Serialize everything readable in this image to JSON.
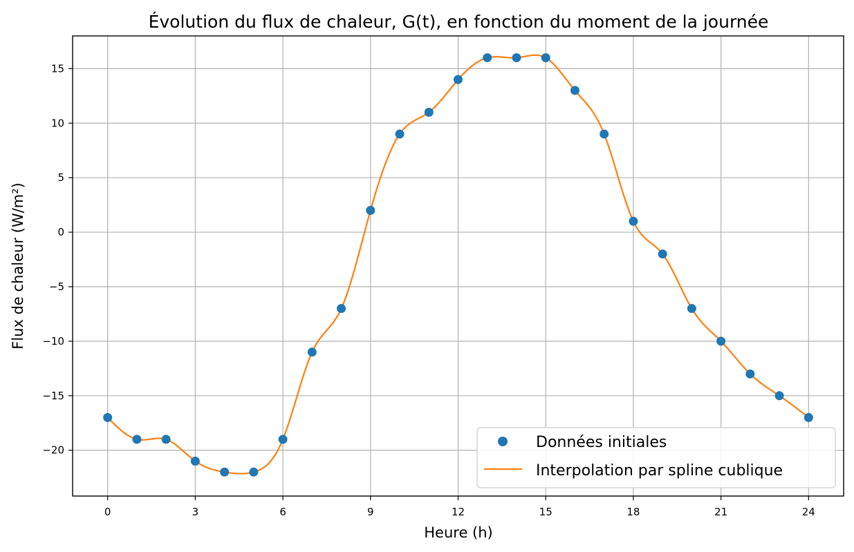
{
  "chart_data": {
    "type": "line",
    "title": "Évolution du flux de chaleur, G(t), en fonction du moment de la journée",
    "xlabel": "Heure (h)",
    "ylabel": "Flux de chaleur (W/m²)",
    "xlim": [
      -1.2,
      25.2
    ],
    "ylim": [
      -24.2,
      18.0
    ],
    "xticks": [
      0,
      3,
      6,
      9,
      12,
      15,
      18,
      21,
      24
    ],
    "xtick_labels": [
      "0",
      "3",
      "6",
      "9",
      "12",
      "15",
      "18",
      "21",
      "24"
    ],
    "yticks": [
      -20,
      -15,
      -10,
      -5,
      0,
      5,
      10,
      15
    ],
    "ytick_labels": [
      "−20",
      "−15",
      "−10",
      "−5",
      "0",
      "5",
      "10",
      "15"
    ],
    "grid": true,
    "legend_position": "bottom-right",
    "series": [
      {
        "name": "Données initiales",
        "kind": "scatter",
        "color": "#1f77b4",
        "x": [
          0,
          1,
          2,
          3,
          4,
          5,
          6,
          7,
          8,
          9,
          10,
          11,
          12,
          13,
          14,
          15,
          16,
          17,
          18,
          19,
          20,
          21,
          22,
          23,
          24
        ],
        "y": [
          -17,
          -19,
          -19,
          -21,
          -22,
          -22,
          -19,
          -11,
          -7,
          2,
          9,
          11,
          14,
          16,
          16,
          16,
          13,
          9,
          1,
          -2,
          -7,
          -10,
          -13,
          -15,
          -17
        ]
      },
      {
        "name": "Interpolation par spline cublique",
        "kind": "line",
        "color": "#ff7f0e",
        "x": [
          0,
          1,
          2,
          3,
          4,
          5,
          6,
          7,
          8,
          9,
          10,
          11,
          12,
          13,
          14,
          15,
          16,
          17,
          18,
          19,
          20,
          21,
          22,
          23,
          24
        ],
        "y": [
          -17,
          -19,
          -19,
          -21,
          -22,
          -22,
          -19,
          -11,
          -7,
          2,
          9,
          11,
          14,
          16,
          16,
          16,
          13,
          9,
          1,
          -2,
          -7,
          -10,
          -13,
          -15,
          -17
        ]
      }
    ]
  }
}
